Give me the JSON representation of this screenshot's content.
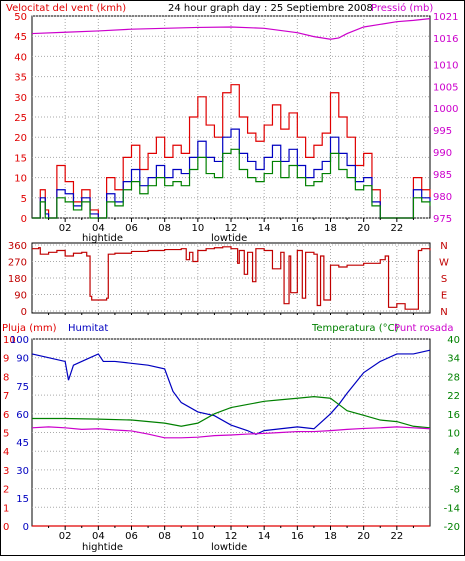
{
  "chart_data": [
    {
      "type": "line",
      "title": "24 hour graph day : 25 Septiembre 2008",
      "left_label": "Velocitat del vent (kmh)",
      "right_label": "Pressió (mb)",
      "left_ticks": [
        "0",
        "5",
        "10",
        "15",
        "20",
        "25",
        "30",
        "35",
        "40",
        "45",
        "50"
      ],
      "right_ticks": [
        "975",
        "980",
        "985",
        "990",
        "995",
        "1000",
        "1005",
        "1010",
        "1016",
        "1021"
      ],
      "ylim_left": [
        0,
        50
      ],
      "ylim_right": [
        975,
        1021
      ],
      "x_ticks": [
        "02",
        "04",
        "06",
        "08",
        "10",
        "12",
        "14",
        "16",
        "18",
        "20",
        "22"
      ],
      "x_range": [
        0,
        24
      ],
      "annotations": [
        "hightide",
        "lowtide"
      ],
      "series": [
        {
          "key": "gust",
          "color": "#e00000",
          "x": [
            0,
            0.5,
            0.8,
            1.0,
            1.5,
            2.0,
            2.5,
            3.0,
            3.5,
            4.0,
            4.5,
            5.0,
            5.5,
            6.0,
            6.5,
            7.0,
            7.5,
            8.0,
            8.5,
            9.0,
            9.5,
            10.0,
            10.5,
            11.0,
            11.5,
            12.0,
            12.5,
            13.0,
            13.5,
            14.0,
            14.5,
            15.0,
            15.5,
            16.0,
            16.5,
            17.0,
            17.5,
            18.0,
            18.5,
            19.0,
            19.5,
            20.0,
            20.5,
            21.0,
            21.5,
            22.0,
            22.5,
            23.0,
            23.5,
            24.0
          ],
          "values": [
            0,
            7,
            2,
            0,
            13,
            9,
            4,
            7,
            2,
            0,
            10,
            7,
            15,
            18,
            12,
            16,
            20,
            15,
            18,
            16,
            25,
            30,
            23,
            20,
            31,
            33,
            25,
            21,
            19,
            23,
            28,
            22,
            26,
            20,
            15,
            18,
            21,
            31,
            25,
            20,
            13,
            16,
            7,
            0,
            0,
            0,
            0,
            10,
            7,
            5
          ]
        },
        {
          "key": "mean",
          "color": "#0000c0",
          "x": [
            0,
            0.5,
            0.8,
            1.0,
            1.5,
            2.0,
            2.5,
            3.0,
            3.5,
            4.0,
            4.5,
            5.0,
            5.5,
            6.0,
            6.5,
            7.0,
            7.5,
            8.0,
            8.5,
            9.0,
            9.5,
            10.0,
            10.5,
            11.0,
            11.5,
            12.0,
            12.5,
            13.0,
            13.5,
            14.0,
            14.5,
            15.0,
            15.5,
            16.0,
            16.5,
            17.0,
            17.5,
            18.0,
            18.5,
            19.0,
            19.5,
            20.0,
            20.5,
            21.0,
            21.5,
            22.0,
            22.5,
            23.0,
            23.5,
            24.0
          ],
          "values": [
            0,
            5,
            1,
            0,
            7,
            6,
            3,
            5,
            1,
            0,
            6,
            4,
            9,
            12,
            8,
            10,
            13,
            10,
            12,
            11,
            15,
            19,
            15,
            14,
            20,
            22,
            16,
            14,
            12,
            15,
            18,
            14,
            17,
            13,
            10,
            12,
            14,
            20,
            16,
            13,
            9,
            10,
            4,
            0,
            0,
            0,
            0,
            7,
            5,
            4
          ]
        },
        {
          "key": "wind",
          "color": "#008000",
          "x": [
            0,
            0.5,
            0.8,
            1.0,
            1.5,
            2.0,
            2.5,
            3.0,
            3.5,
            4.0,
            4.5,
            5.0,
            5.5,
            6.0,
            6.5,
            7.0,
            7.5,
            8.0,
            8.5,
            9.0,
            9.5,
            10.0,
            10.5,
            11.0,
            11.5,
            12.0,
            12.5,
            13.0,
            13.5,
            14.0,
            14.5,
            15.0,
            15.5,
            16.0,
            16.5,
            17.0,
            17.5,
            18.0,
            18.5,
            19.0,
            19.5,
            20.0,
            20.5,
            21.0,
            21.5,
            22.0,
            22.5,
            23.0,
            23.5,
            24.0
          ],
          "values": [
            0,
            4,
            0,
            0,
            5,
            4,
            2,
            4,
            0,
            0,
            4,
            3,
            7,
            9,
            6,
            8,
            10,
            8,
            9,
            8,
            12,
            15,
            11,
            10,
            16,
            17,
            12,
            10,
            9,
            11,
            14,
            10,
            13,
            10,
            8,
            9,
            11,
            16,
            12,
            10,
            7,
            8,
            3,
            0,
            0,
            0,
            0,
            5,
            4,
            3
          ]
        },
        {
          "key": "pressure",
          "color": "#cc00cc",
          "x": [
            0,
            2,
            4,
            6,
            8,
            10,
            12,
            14,
            16,
            17,
            18,
            18.5,
            19,
            20,
            22,
            23,
            24
          ],
          "values": [
            1017,
            1017.3,
            1017.6,
            1018,
            1018.2,
            1018.4,
            1018.5,
            1018.2,
            1017.2,
            1016.3,
            1015.7,
            1016,
            1017,
            1018.5,
            1019.7,
            1020,
            1020.4
          ]
        }
      ]
    },
    {
      "type": "line",
      "ylim": [
        0,
        360
      ],
      "left_ticks": [
        "0",
        "90",
        "180",
        "270",
        "360"
      ],
      "right_ticks": [
        "N",
        "W",
        "S",
        "E",
        "N"
      ],
      "x_range": [
        0,
        24
      ],
      "series": [
        {
          "key": "direction",
          "color": "#c00000",
          "x": [
            0,
            0.4,
            0.5,
            1.0,
            1.5,
            2.0,
            2.5,
            3.0,
            3.3,
            3.5,
            3.6,
            4.0,
            4.5,
            4.6,
            5.0,
            6.0,
            7.0,
            8.0,
            9.0,
            9.3,
            9.5,
            9.7,
            10.0,
            10.5,
            11.0,
            11.5,
            12.0,
            12.4,
            12.5,
            12.8,
            13.0,
            13.3,
            13.5,
            14.0,
            14.5,
            15.0,
            15.2,
            15.5,
            15.6,
            16.0,
            16.3,
            16.5,
            17.0,
            17.2,
            17.4,
            17.6,
            18.0,
            18.5,
            19.0,
            20.0,
            21.0,
            21.3,
            21.5,
            22.0,
            22.5,
            23.0,
            23.3,
            23.5,
            24.0
          ],
          "values": [
            340,
            345,
            310,
            320,
            330,
            300,
            315,
            320,
            300,
            80,
            60,
            60,
            70,
            310,
            315,
            325,
            330,
            335,
            340,
            280,
            320,
            270,
            330,
            340,
            345,
            350,
            340,
            260,
            330,
            200,
            320,
            160,
            340,
            330,
            230,
            320,
            40,
            300,
            100,
            330,
            70,
            320,
            310,
            30,
            300,
            60,
            250,
            240,
            250,
            260,
            280,
            300,
            20,
            40,
            10,
            10,
            330,
            340,
            330
          ]
        }
      ]
    },
    {
      "type": "line",
      "left_label_1": "Pluja (mm)",
      "left_label_2": "Humitat",
      "right_label_1": "Temperatura (°C)",
      "right_label_2": "Punt rosada",
      "pluja_ticks": [
        "0",
        "1",
        "2",
        "3",
        "4",
        "5",
        "6",
        "7",
        "8",
        "9",
        "10"
      ],
      "humitat_ticks": [
        "0",
        "15",
        "30",
        "45",
        "60",
        "75",
        "90",
        "100"
      ],
      "temp_ticks": [
        "-20",
        "-14",
        "-8",
        "-2",
        "4",
        "10",
        "16",
        "22",
        "28",
        "34",
        "40"
      ],
      "ylim_humidity": [
        0,
        100
      ],
      "ylim_temp": [
        -20,
        40
      ],
      "x_ticks": [
        "02",
        "04",
        "06",
        "08",
        "10",
        "12",
        "14",
        "16",
        "18",
        "20",
        "22"
      ],
      "x_range": [
        0,
        24
      ],
      "annotations": [
        "hightide",
        "lowtide"
      ],
      "series": [
        {
          "key": "rain",
          "color": "#e00000",
          "x": [
            0,
            24
          ],
          "values": [
            0,
            0
          ]
        },
        {
          "key": "humidity",
          "color": "#0000c0",
          "x": [
            0,
            1,
            2,
            2.2,
            2.5,
            3,
            3.5,
            4,
            4.3,
            5,
            6,
            7,
            8,
            8.5,
            9,
            10,
            11,
            12,
            13,
            13.5,
            14,
            15,
            16,
            17,
            17.5,
            18,
            18.5,
            19,
            20,
            21,
            22,
            23,
            24
          ],
          "values": [
            92,
            90,
            88,
            78,
            86,
            88,
            90,
            92,
            88,
            88,
            87,
            86,
            84,
            72,
            66,
            61,
            59,
            54,
            51,
            49,
            51,
            52,
            53,
            52,
            56,
            60,
            65,
            71,
            82,
            88,
            92,
            92,
            94
          ]
        },
        {
          "key": "temperature",
          "color": "#008000",
          "x": [
            0,
            2,
            4,
            6,
            8,
            9,
            10,
            11,
            12,
            13,
            14,
            15,
            16,
            17,
            18,
            18.5,
            19,
            20,
            21,
            22,
            23,
            24
          ],
          "values": [
            14.5,
            14.5,
            14.3,
            14,
            13,
            12,
            13,
            16,
            18,
            19,
            20,
            20.5,
            21,
            21.5,
            21,
            19,
            17,
            15.5,
            14,
            13.5,
            12,
            11.5
          ]
        },
        {
          "key": "dewpoint",
          "color": "#cc00cc",
          "x": [
            0,
            1,
            2,
            3,
            4,
            5,
            6,
            7,
            8,
            9,
            10,
            11,
            12,
            13,
            14,
            15,
            16,
            17,
            18,
            19,
            20,
            21,
            22,
            23,
            24
          ],
          "values": [
            11.5,
            11.8,
            11.5,
            11,
            11.2,
            10.8,
            10.5,
            9.5,
            8.3,
            8.3,
            8.5,
            9,
            9.2,
            9.5,
            9.7,
            10,
            10.3,
            10.3,
            10.6,
            11,
            11.3,
            11.5,
            11.8,
            11.5,
            11.2
          ]
        }
      ]
    }
  ]
}
